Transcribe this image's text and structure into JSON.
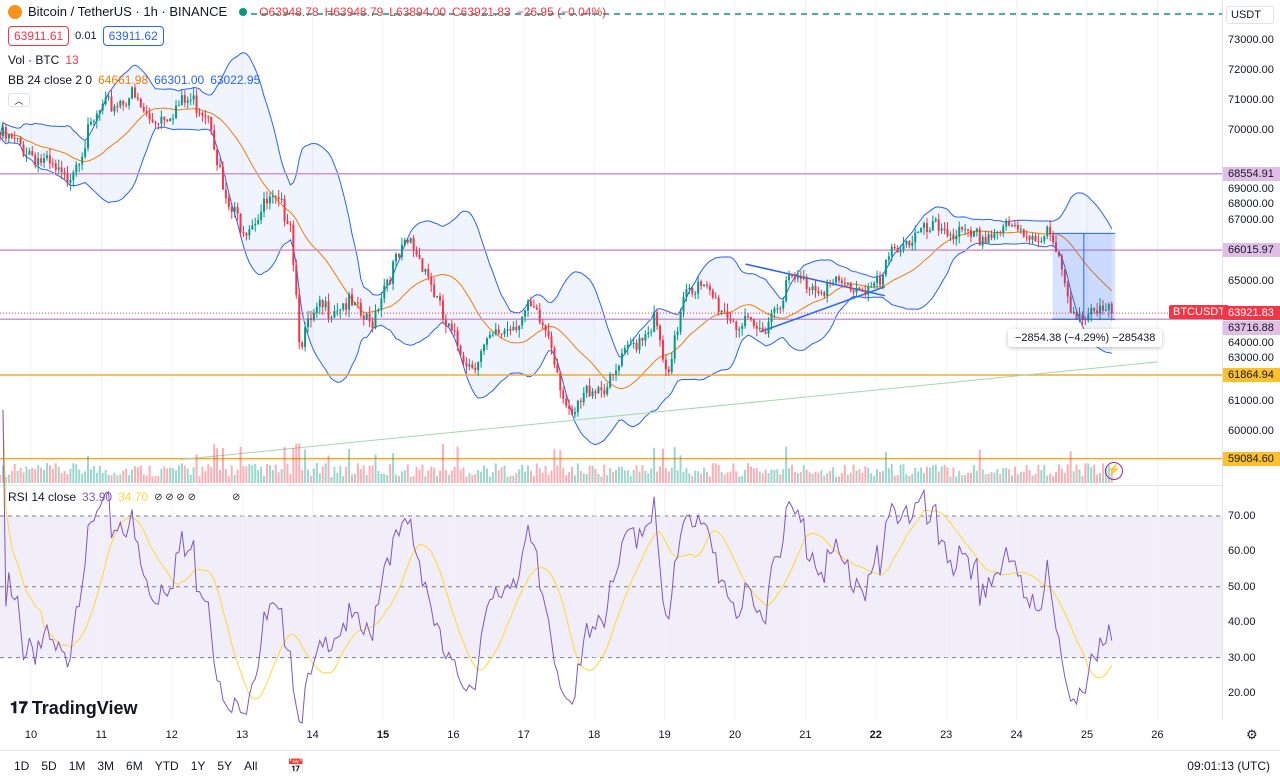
{
  "header": {
    "symbol": "Bitcoin / TetherUS · 1h · BINANCE",
    "open": "O63948.78",
    "high": "H63948.79",
    "low": "L63894.00",
    "close": "C63921.83",
    "change": "−26.95 (−0.04%)",
    "bid": "63911.61",
    "spread": "0.01",
    "ask": "63911.62",
    "currency": "USDT"
  },
  "indicators": {
    "vol_label": "Vol · BTC",
    "vol_value": "13",
    "bb_label": "BB 24 close 2 0",
    "bb_basis": "64661.98",
    "bb_upper": "66301.00",
    "bb_lower": "63022.95",
    "rsi_label": "RSI 14 close",
    "rsi_value": "33.90",
    "rsi_ma": "34.70"
  },
  "colors": {
    "up": "#089981",
    "down": "#f23645",
    "bb": "#2962ff",
    "basis": "#f57c00",
    "rsi": "#7e57c2",
    "rsi_ma": "#fdd835",
    "hline_purple": "#ce93d8",
    "hline_yellow": "#f9a825"
  },
  "measure": {
    "label": "−2854.38 (−4.29%) −285438"
  },
  "price_axis": [
    "73000.00",
    "72000.00",
    "71000.00",
    "70000.00",
    "69000.00",
    "68000.00",
    "67000.00",
    "65000.00",
    "64000.00",
    "63000.00",
    "61000.00",
    "60000.00"
  ],
  "price_tags": [
    {
      "label": "68554.91",
      "price": 68554.91,
      "kind": "purple"
    },
    {
      "label": "66015.97",
      "price": 66015.97,
      "kind": "purple"
    },
    {
      "label": "63716.88",
      "price": 63716.88,
      "kind": "purple"
    },
    {
      "label": "61864.94",
      "price": 61864.94,
      "kind": "yellow"
    },
    {
      "label": "59084.60",
      "price": 59084.6,
      "kind": "yellow"
    }
  ],
  "last_price": {
    "symbol": "BTCUSDT",
    "value": "63921.83",
    "price": 63921.83
  },
  "rsi_axis": [
    "70.00",
    "60.00",
    "50.00",
    "40.00",
    "30.00",
    "20.00"
  ],
  "time_axis": [
    "10",
    "11",
    "12",
    "13",
    "14",
    "15",
    "16",
    "17",
    "18",
    "19",
    "20",
    "21",
    "22",
    "23",
    "24",
    "25",
    "26"
  ],
  "bold_days": [
    "15",
    "22"
  ],
  "timeframes": [
    "1D",
    "5D",
    "1M",
    "3M",
    "6M",
    "YTD",
    "1Y",
    "5Y",
    "All"
  ],
  "clock": "09:01:13 (UTC)",
  "logo": "TradingView",
  "chart_data": {
    "type": "candlestick",
    "interval": "1h",
    "ylim": [
      59000,
      73300
    ],
    "rsi_ylim": [
      15,
      78
    ],
    "xlim_day": [
      9.56,
      26.5
    ],
    "close_path": [
      [
        9.56,
        69800
      ],
      [
        9.99,
        69300
      ],
      [
        10.48,
        68300
      ],
      [
        10.98,
        70600
      ],
      [
        11.41,
        71200
      ],
      [
        11.69,
        70300
      ],
      [
        12.26,
        71000
      ],
      [
        12.54,
        70600
      ],
      [
        12.76,
        67500
      ],
      [
        13.04,
        66800
      ],
      [
        13.39,
        67600
      ],
      [
        13.68,
        67200
      ],
      [
        13.82,
        63000
      ],
      [
        14.1,
        64000
      ],
      [
        14.46,
        64300
      ],
      [
        14.82,
        63500
      ],
      [
        15.03,
        65000
      ],
      [
        15.38,
        66300
      ],
      [
        15.6,
        65500
      ],
      [
        15.88,
        63500
      ],
      [
        16.24,
        62200
      ],
      [
        16.67,
        63300
      ],
      [
        17.09,
        64000
      ],
      [
        17.37,
        63200
      ],
      [
        17.66,
        60200
      ],
      [
        17.94,
        61500
      ],
      [
        18.22,
        61500
      ],
      [
        18.51,
        62800
      ],
      [
        18.86,
        63700
      ],
      [
        19.05,
        61500
      ],
      [
        19.29,
        65000
      ],
      [
        19.64,
        64500
      ],
      [
        20.07,
        63500
      ],
      [
        20.36,
        63300
      ],
      [
        20.78,
        65000
      ],
      [
        21.35,
        64800
      ],
      [
        22.06,
        64800
      ],
      [
        22.27,
        66200
      ],
      [
        22.63,
        66500
      ],
      [
        22.98,
        66800
      ],
      [
        23.34,
        66300
      ],
      [
        23.76,
        66700
      ],
      [
        24.47,
        66500
      ],
      [
        24.76,
        64300
      ],
      [
        24.97,
        63700
      ],
      [
        25.36,
        63921.83
      ]
    ],
    "trendlines": [
      [
        [
          12.12,
          59050
        ],
        [
          26.0,
          62300
        ]
      ],
      [
        [
          20.15,
          65550
        ],
        [
          22.13,
          64500
        ]
      ],
      [
        [
          20.36,
          63300
        ],
        [
          22.13,
          64800
        ]
      ]
    ],
    "measure_range": {
      "day": [
        24.51,
        25.4
      ],
      "price": [
        66570,
        63716
      ]
    }
  }
}
